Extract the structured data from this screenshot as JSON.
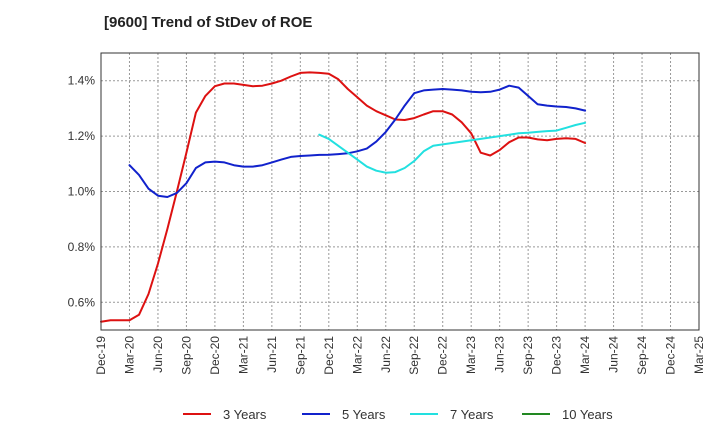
{
  "chart_data": {
    "type": "line",
    "title": "[9600]  Trend of StDev of ROE",
    "x_ticks": [
      "Dec-19",
      "Mar-20",
      "Jun-20",
      "Sep-20",
      "Dec-20",
      "Mar-21",
      "Jun-21",
      "Sep-21",
      "Dec-21",
      "Mar-22",
      "Jun-22",
      "Sep-22",
      "Dec-22",
      "Mar-23",
      "Jun-23",
      "Sep-23",
      "Dec-23",
      "Mar-24",
      "Jun-24",
      "Sep-24",
      "Dec-24",
      "Mar-25"
    ],
    "y_ticks": [
      "0.6%",
      "0.8%",
      "1.0%",
      "1.2%",
      "1.4%"
    ],
    "y_tick_values": [
      0.6,
      0.8,
      1.0,
      1.2,
      1.4
    ],
    "ylim": [
      0.5,
      1.5
    ],
    "grid": true,
    "legend_position": "bottom",
    "series": [
      {
        "name": "3 Years",
        "color": "#dd1111",
        "points": [
          [
            0,
            0.53
          ],
          [
            1,
            0.535
          ],
          [
            2,
            0.535
          ],
          [
            3,
            0.535
          ],
          [
            4,
            0.555
          ],
          [
            5,
            0.63
          ],
          [
            6,
            0.74
          ],
          [
            7,
            0.865
          ],
          [
            8,
            1.0
          ],
          [
            9,
            1.14
          ],
          [
            10,
            1.285
          ],
          [
            11,
            1.345
          ],
          [
            12,
            1.38
          ],
          [
            13,
            1.39
          ],
          [
            14,
            1.39
          ],
          [
            15,
            1.385
          ],
          [
            16,
            1.38
          ],
          [
            17,
            1.382
          ],
          [
            18,
            1.39
          ],
          [
            19,
            1.4
          ],
          [
            20,
            1.415
          ],
          [
            21,
            1.428
          ],
          [
            22,
            1.43
          ],
          [
            23,
            1.428
          ],
          [
            24,
            1.425
          ],
          [
            25,
            1.405
          ],
          [
            26,
            1.37
          ],
          [
            27,
            1.34
          ],
          [
            28,
            1.31
          ],
          [
            29,
            1.29
          ],
          [
            30,
            1.275
          ],
          [
            31,
            1.26
          ],
          [
            32,
            1.258
          ],
          [
            33,
            1.265
          ],
          [
            34,
            1.278
          ],
          [
            35,
            1.29
          ],
          [
            36,
            1.29
          ],
          [
            37,
            1.278
          ],
          [
            38,
            1.25
          ],
          [
            39,
            1.21
          ],
          [
            40,
            1.14
          ],
          [
            41,
            1.13
          ],
          [
            42,
            1.15
          ],
          [
            43,
            1.178
          ],
          [
            44,
            1.195
          ],
          [
            45,
            1.195
          ],
          [
            46,
            1.188
          ],
          [
            47,
            1.185
          ],
          [
            48,
            1.19
          ],
          [
            49,
            1.192
          ],
          [
            50,
            1.19
          ],
          [
            51,
            1.175
          ]
        ]
      },
      {
        "name": "5 Years",
        "color": "#1122cc",
        "points": [
          [
            3,
            1.095
          ],
          [
            4,
            1.06
          ],
          [
            5,
            1.01
          ],
          [
            6,
            0.985
          ],
          [
            7,
            0.98
          ],
          [
            8,
            0.995
          ],
          [
            9,
            1.03
          ],
          [
            10,
            1.085
          ],
          [
            11,
            1.105
          ],
          [
            12,
            1.108
          ],
          [
            13,
            1.105
          ],
          [
            14,
            1.095
          ],
          [
            15,
            1.09
          ],
          [
            16,
            1.09
          ],
          [
            17,
            1.095
          ],
          [
            18,
            1.105
          ],
          [
            19,
            1.115
          ],
          [
            20,
            1.125
          ],
          [
            21,
            1.128
          ],
          [
            22,
            1.13
          ],
          [
            23,
            1.132
          ],
          [
            24,
            1.133
          ],
          [
            25,
            1.135
          ],
          [
            26,
            1.138
          ],
          [
            27,
            1.145
          ],
          [
            28,
            1.155
          ],
          [
            29,
            1.18
          ],
          [
            30,
            1.215
          ],
          [
            31,
            1.26
          ],
          [
            32,
            1.31
          ],
          [
            33,
            1.355
          ],
          [
            34,
            1.365
          ],
          [
            35,
            1.368
          ],
          [
            36,
            1.37
          ],
          [
            37,
            1.368
          ],
          [
            38,
            1.365
          ],
          [
            39,
            1.36
          ],
          [
            40,
            1.358
          ],
          [
            41,
            1.36
          ],
          [
            42,
            1.368
          ],
          [
            43,
            1.382
          ],
          [
            44,
            1.375
          ],
          [
            45,
            1.345
          ],
          [
            46,
            1.315
          ],
          [
            47,
            1.31
          ],
          [
            48,
            1.307
          ],
          [
            49,
            1.305
          ],
          [
            50,
            1.3
          ],
          [
            51,
            1.292
          ]
        ]
      },
      {
        "name": "7 Years",
        "color": "#22e0e0",
        "points": [
          [
            23,
            1.205
          ],
          [
            24,
            1.19
          ],
          [
            25,
            1.165
          ],
          [
            26,
            1.14
          ],
          [
            27,
            1.115
          ],
          [
            28,
            1.09
          ],
          [
            29,
            1.075
          ],
          [
            30,
            1.068
          ],
          [
            31,
            1.07
          ],
          [
            32,
            1.085
          ],
          [
            33,
            1.11
          ],
          [
            34,
            1.145
          ],
          [
            35,
            1.165
          ],
          [
            36,
            1.17
          ],
          [
            37,
            1.175
          ],
          [
            38,
            1.18
          ],
          [
            39,
            1.185
          ],
          [
            40,
            1.19
          ],
          [
            41,
            1.195
          ],
          [
            42,
            1.2
          ],
          [
            43,
            1.205
          ],
          [
            44,
            1.21
          ],
          [
            45,
            1.212
          ],
          [
            46,
            1.215
          ],
          [
            47,
            1.218
          ],
          [
            48,
            1.22
          ],
          [
            49,
            1.23
          ],
          [
            50,
            1.24
          ],
          [
            51,
            1.248
          ]
        ]
      },
      {
        "name": "10 Years",
        "color": "#228822",
        "points": []
      }
    ]
  }
}
